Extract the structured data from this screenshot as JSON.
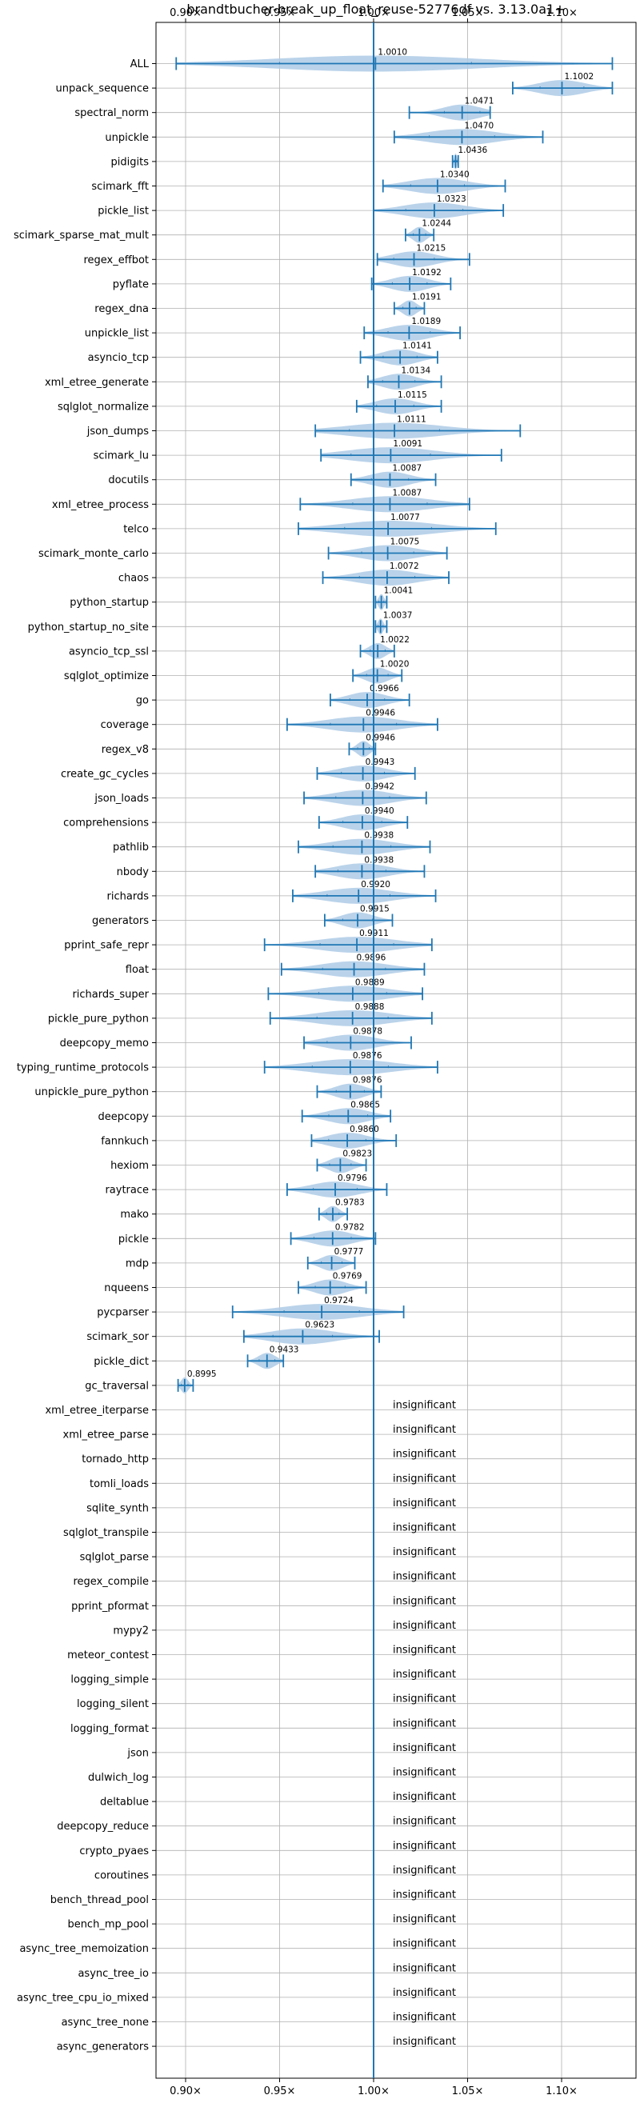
{
  "chart_data": {
    "type": "violin",
    "title": "brandtbucher-break_up_float_reuse-52776df vs. 3.13.0a1+",
    "xlim": [
      0.885,
      1.135
    ],
    "x_ticks": [
      0.9,
      0.95,
      1.0,
      1.05,
      1.1
    ],
    "x_tick_labels": [
      "0.90×",
      "0.95×",
      "1.00×",
      "1.05×",
      "1.10×"
    ],
    "x_ticks_top_and_bottom": true,
    "reference_line": 1.0,
    "grid": true,
    "color": "#1f77b4",
    "violin_fill": "#aecbe6",
    "insignificant_label": "insignificant",
    "benchmarks": [
      {
        "name": "ALL",
        "mean": 1.001,
        "label": "1.0010",
        "min": 0.895,
        "max": 1.127
      },
      {
        "name": "unpack_sequence",
        "mean": 1.1002,
        "label": "1.1002",
        "min": 1.074,
        "max": 1.127
      },
      {
        "name": "spectral_norm",
        "mean": 1.0471,
        "label": "1.0471",
        "min": 1.019,
        "max": 1.062
      },
      {
        "name": "unpickle",
        "mean": 1.047,
        "label": "1.0470",
        "min": 1.011,
        "max": 1.09
      },
      {
        "name": "pidigits",
        "mean": 1.0436,
        "label": "1.0436",
        "min": 1.042,
        "max": 1.045
      },
      {
        "name": "scimark_fft",
        "mean": 1.034,
        "label": "1.0340",
        "min": 1.005,
        "max": 1.07
      },
      {
        "name": "pickle_list",
        "mean": 1.0323,
        "label": "1.0323",
        "min": 1.0,
        "max": 1.069
      },
      {
        "name": "scimark_sparse_mat_mult",
        "mean": 1.0244,
        "label": "1.0244",
        "min": 1.017,
        "max": 1.032
      },
      {
        "name": "regex_effbot",
        "mean": 1.0215,
        "label": "1.0215",
        "min": 1.002,
        "max": 1.051
      },
      {
        "name": "pyflate",
        "mean": 1.0192,
        "label": "1.0192",
        "min": 0.999,
        "max": 1.041
      },
      {
        "name": "regex_dna",
        "mean": 1.0191,
        "label": "1.0191",
        "min": 1.011,
        "max": 1.027
      },
      {
        "name": "unpickle_list",
        "mean": 1.0189,
        "label": "1.0189",
        "min": 0.995,
        "max": 1.046
      },
      {
        "name": "asyncio_tcp",
        "mean": 1.0141,
        "label": "1.0141",
        "min": 0.993,
        "max": 1.034
      },
      {
        "name": "xml_etree_generate",
        "mean": 1.0134,
        "label": "1.0134",
        "min": 0.997,
        "max": 1.036
      },
      {
        "name": "sqlglot_normalize",
        "mean": 1.0115,
        "label": "1.0115",
        "min": 0.991,
        "max": 1.036
      },
      {
        "name": "json_dumps",
        "mean": 1.0111,
        "label": "1.0111",
        "min": 0.969,
        "max": 1.078
      },
      {
        "name": "scimark_lu",
        "mean": 1.0091,
        "label": "1.0091",
        "min": 0.972,
        "max": 1.068
      },
      {
        "name": "docutils",
        "mean": 1.0087,
        "label": "1.0087",
        "min": 0.988,
        "max": 1.033
      },
      {
        "name": "xml_etree_process",
        "mean": 1.0087,
        "label": "1.0087",
        "min": 0.961,
        "max": 1.051
      },
      {
        "name": "telco",
        "mean": 1.0077,
        "label": "1.0077",
        "min": 0.96,
        "max": 1.065
      },
      {
        "name": "scimark_monte_carlo",
        "mean": 1.0075,
        "label": "1.0075",
        "min": 0.976,
        "max": 1.039
      },
      {
        "name": "chaos",
        "mean": 1.0072,
        "label": "1.0072",
        "min": 0.973,
        "max": 1.04
      },
      {
        "name": "python_startup",
        "mean": 1.0041,
        "label": "1.0041",
        "min": 1.001,
        "max": 1.007
      },
      {
        "name": "python_startup_no_site",
        "mean": 1.0037,
        "label": "1.0037",
        "min": 1.001,
        "max": 1.007
      },
      {
        "name": "asyncio_tcp_ssl",
        "mean": 1.0022,
        "label": "1.0022",
        "min": 0.993,
        "max": 1.011
      },
      {
        "name": "sqlglot_optimize",
        "mean": 1.002,
        "label": "1.0020",
        "min": 0.989,
        "max": 1.015
      },
      {
        "name": "go",
        "mean": 0.9966,
        "label": "0.9966",
        "min": 0.977,
        "max": 1.019
      },
      {
        "name": "coverage",
        "mean": 0.9946,
        "label": "0.9946",
        "min": 0.954,
        "max": 1.034
      },
      {
        "name": "regex_v8",
        "mean": 0.9946,
        "label": "0.9946",
        "min": 0.987,
        "max": 1.001
      },
      {
        "name": "create_gc_cycles",
        "mean": 0.9943,
        "label": "0.9943",
        "min": 0.97,
        "max": 1.022
      },
      {
        "name": "json_loads",
        "mean": 0.9942,
        "label": "0.9942",
        "min": 0.963,
        "max": 1.028
      },
      {
        "name": "comprehensions",
        "mean": 0.994,
        "label": "0.9940",
        "min": 0.971,
        "max": 1.018
      },
      {
        "name": "pathlib",
        "mean": 0.9938,
        "label": "0.9938",
        "min": 0.96,
        "max": 1.03
      },
      {
        "name": "nbody",
        "mean": 0.9938,
        "label": "0.9938",
        "min": 0.969,
        "max": 1.027
      },
      {
        "name": "richards",
        "mean": 0.992,
        "label": "0.9920",
        "min": 0.957,
        "max": 1.033
      },
      {
        "name": "generators",
        "mean": 0.9915,
        "label": "0.9915",
        "min": 0.974,
        "max": 1.01
      },
      {
        "name": "pprint_safe_repr",
        "mean": 0.9911,
        "label": "0.9911",
        "min": 0.942,
        "max": 1.031
      },
      {
        "name": "float",
        "mean": 0.9896,
        "label": "0.9896",
        "min": 0.951,
        "max": 1.027
      },
      {
        "name": "richards_super",
        "mean": 0.9889,
        "label": "0.9889",
        "min": 0.944,
        "max": 1.026
      },
      {
        "name": "pickle_pure_python",
        "mean": 0.9888,
        "label": "0.9888",
        "min": 0.945,
        "max": 1.031
      },
      {
        "name": "deepcopy_memo",
        "mean": 0.9878,
        "label": "0.9878",
        "min": 0.963,
        "max": 1.02
      },
      {
        "name": "typing_runtime_protocols",
        "mean": 0.9876,
        "label": "0.9876",
        "min": 0.942,
        "max": 1.034
      },
      {
        "name": "unpickle_pure_python",
        "mean": 0.9876,
        "label": "0.9876",
        "min": 0.97,
        "max": 1.004
      },
      {
        "name": "deepcopy",
        "mean": 0.9865,
        "label": "0.9865",
        "min": 0.962,
        "max": 1.009
      },
      {
        "name": "fannkuch",
        "mean": 0.986,
        "label": "0.9860",
        "min": 0.967,
        "max": 1.012
      },
      {
        "name": "hexiom",
        "mean": 0.9823,
        "label": "0.9823",
        "min": 0.97,
        "max": 0.996
      },
      {
        "name": "raytrace",
        "mean": 0.9796,
        "label": "0.9796",
        "min": 0.954,
        "max": 1.007
      },
      {
        "name": "mako",
        "mean": 0.9783,
        "label": "0.9783",
        "min": 0.971,
        "max": 0.986
      },
      {
        "name": "pickle",
        "mean": 0.9782,
        "label": "0.9782",
        "min": 0.956,
        "max": 1.001
      },
      {
        "name": "mdp",
        "mean": 0.9777,
        "label": "0.9777",
        "min": 0.965,
        "max": 0.99
      },
      {
        "name": "nqueens",
        "mean": 0.9769,
        "label": "0.9769",
        "min": 0.96,
        "max": 0.996
      },
      {
        "name": "pycparser",
        "mean": 0.9724,
        "label": "0.9724",
        "min": 0.925,
        "max": 1.016
      },
      {
        "name": "scimark_sor",
        "mean": 0.9623,
        "label": "0.9623",
        "min": 0.931,
        "max": 1.003
      },
      {
        "name": "pickle_dict",
        "mean": 0.9433,
        "label": "0.9433",
        "min": 0.933,
        "max": 0.952
      },
      {
        "name": "gc_traversal",
        "mean": 0.8995,
        "label": "0.8995",
        "min": 0.896,
        "max": 0.904
      },
      {
        "name": "xml_etree_iterparse",
        "insignificant": true
      },
      {
        "name": "xml_etree_parse",
        "insignificant": true
      },
      {
        "name": "tornado_http",
        "insignificant": true
      },
      {
        "name": "tomli_loads",
        "insignificant": true
      },
      {
        "name": "sqlite_synth",
        "insignificant": true
      },
      {
        "name": "sqlglot_transpile",
        "insignificant": true
      },
      {
        "name": "sqlglot_parse",
        "insignificant": true
      },
      {
        "name": "regex_compile",
        "insignificant": true
      },
      {
        "name": "pprint_pformat",
        "insignificant": true
      },
      {
        "name": "mypy2",
        "insignificant": true
      },
      {
        "name": "meteor_contest",
        "insignificant": true
      },
      {
        "name": "logging_simple",
        "insignificant": true
      },
      {
        "name": "logging_silent",
        "insignificant": true
      },
      {
        "name": "logging_format",
        "insignificant": true
      },
      {
        "name": "json",
        "insignificant": true
      },
      {
        "name": "dulwich_log",
        "insignificant": true
      },
      {
        "name": "deltablue",
        "insignificant": true
      },
      {
        "name": "deepcopy_reduce",
        "insignificant": true
      },
      {
        "name": "crypto_pyaes",
        "insignificant": true
      },
      {
        "name": "coroutines",
        "insignificant": true
      },
      {
        "name": "bench_thread_pool",
        "insignificant": true
      },
      {
        "name": "bench_mp_pool",
        "insignificant": true
      },
      {
        "name": "async_tree_memoization",
        "insignificant": true
      },
      {
        "name": "async_tree_io",
        "insignificant": true
      },
      {
        "name": "async_tree_cpu_io_mixed",
        "insignificant": true
      },
      {
        "name": "async_tree_none",
        "insignificant": true
      },
      {
        "name": "async_generators",
        "insignificant": true
      }
    ]
  }
}
